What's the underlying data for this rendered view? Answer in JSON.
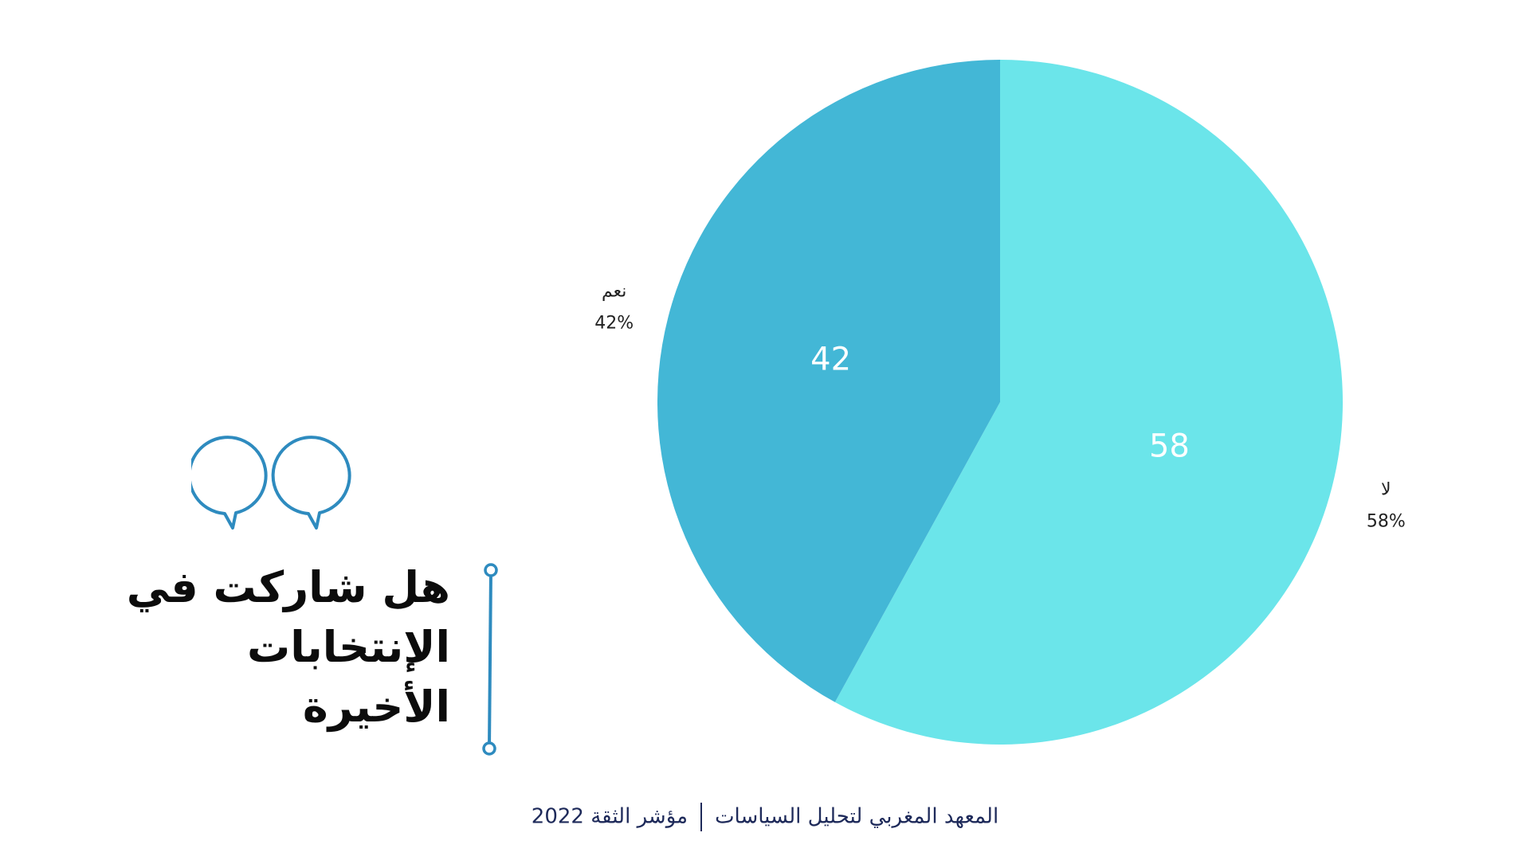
{
  "title_lines": [
    "هل شاركت في",
    "الإنتخابات",
    "الأخيرة"
  ],
  "footer": {
    "left": "المعهد المغربي لتحليل السياسات",
    "right": "مؤشر الثقة 2022"
  },
  "chart_data": {
    "type": "pie",
    "title": "هل شاركت في الإنتخابات الأخيرة",
    "slices": [
      {
        "label": "لا",
        "value": 58,
        "value_label": "58",
        "percent_label": "58%",
        "color": "#6be5ea"
      },
      {
        "label": "نعم",
        "value": 42,
        "value_label": "42",
        "percent_label": "42%",
        "color": "#43b7d6"
      }
    ],
    "start": "top",
    "direction": "clockwise",
    "legend": "none"
  },
  "colors": {
    "accent": "#2e8bbf",
    "title_text": "#0c0c0c",
    "footer_text": "#1e2a5a"
  },
  "icons": {
    "quote": "quote-marks-icon",
    "divider": "vertical-line-icon"
  }
}
